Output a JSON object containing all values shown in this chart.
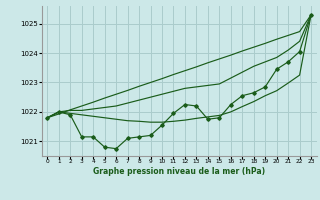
{
  "title": "Graphe pression niveau de la mer (hPa)",
  "bg_color": "#cce8e8",
  "grid_color": "#aacccc",
  "line_color": "#1a5c1a",
  "marker_color": "#1a5c1a",
  "xlim": [
    -0.5,
    23.5
  ],
  "ylim": [
    1020.5,
    1025.6
  ],
  "yticks": [
    1021,
    1022,
    1023,
    1024,
    1025
  ],
  "xticks": [
    0,
    1,
    2,
    3,
    4,
    5,
    6,
    7,
    8,
    9,
    10,
    11,
    12,
    13,
    14,
    15,
    16,
    17,
    18,
    19,
    20,
    21,
    22,
    23
  ],
  "series_main": [
    1021.8,
    1022.0,
    1021.9,
    1021.15,
    1021.15,
    1020.8,
    1020.75,
    1021.1,
    1021.15,
    1021.2,
    1021.55,
    1021.95,
    1022.25,
    1022.2,
    1021.75,
    1021.8,
    1022.25,
    1022.55,
    1022.65,
    1022.85,
    1023.45,
    1023.7,
    1024.05,
    1025.3
  ],
  "series_upper": [
    1021.8,
    1022.0,
    1022.05,
    1022.05,
    1022.1,
    1022.15,
    1022.2,
    1022.3,
    1022.4,
    1022.5,
    1022.6,
    1022.7,
    1022.8,
    1022.85,
    1022.9,
    1022.95,
    1023.15,
    1023.35,
    1023.55,
    1023.7,
    1023.85,
    1024.1,
    1024.4,
    1025.3
  ],
  "series_lower": [
    1021.8,
    1022.0,
    1021.95,
    1021.9,
    1021.85,
    1021.8,
    1021.75,
    1021.7,
    1021.68,
    1021.65,
    1021.65,
    1021.68,
    1021.72,
    1021.78,
    1021.83,
    1021.88,
    1022.0,
    1022.18,
    1022.35,
    1022.55,
    1022.72,
    1022.98,
    1023.25,
    1025.3
  ],
  "series_straight": [
    1021.8,
    1021.93,
    1022.07,
    1022.2,
    1022.33,
    1022.47,
    1022.6,
    1022.73,
    1022.87,
    1023.0,
    1023.13,
    1023.27,
    1023.4,
    1023.53,
    1023.67,
    1023.8,
    1023.93,
    1024.07,
    1024.2,
    1024.33,
    1024.47,
    1024.6,
    1024.73,
    1025.3
  ]
}
